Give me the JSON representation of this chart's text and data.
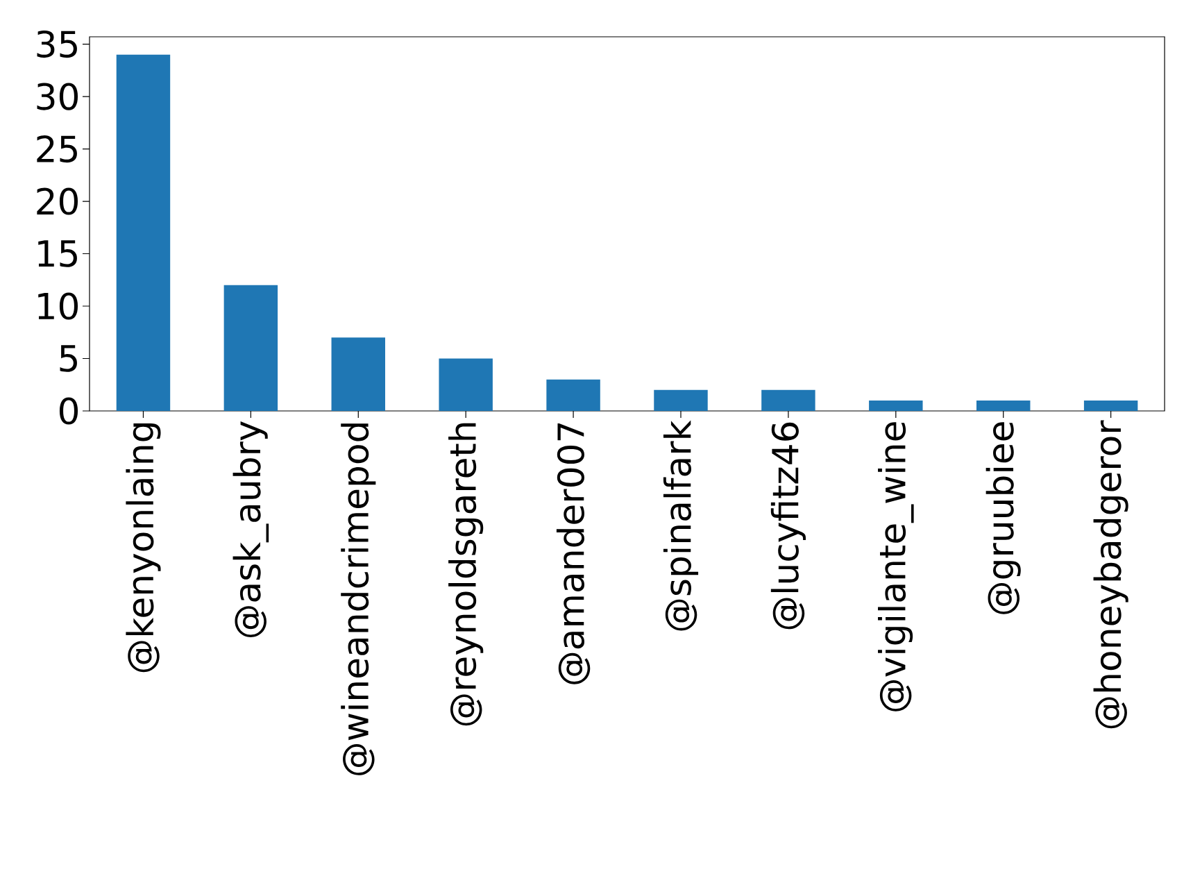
{
  "chart_data": {
    "type": "bar",
    "categories": [
      "@kenyonlaing",
      "@ask_aubry",
      "@wineandcrimepod",
      "@reynoldsgareth",
      "@amander007",
      "@spinalfark",
      "@lucyfitz46",
      "@vigilante_wine",
      "@gruubiee",
      "@honeybadgeror"
    ],
    "values": [
      34,
      12,
      7,
      5,
      3,
      2,
      2,
      1,
      1,
      1
    ],
    "color": "#1f77b4",
    "ylim": [
      0,
      35.7
    ],
    "yticks": [
      0,
      5,
      10,
      15,
      20,
      25,
      30,
      35
    ]
  }
}
